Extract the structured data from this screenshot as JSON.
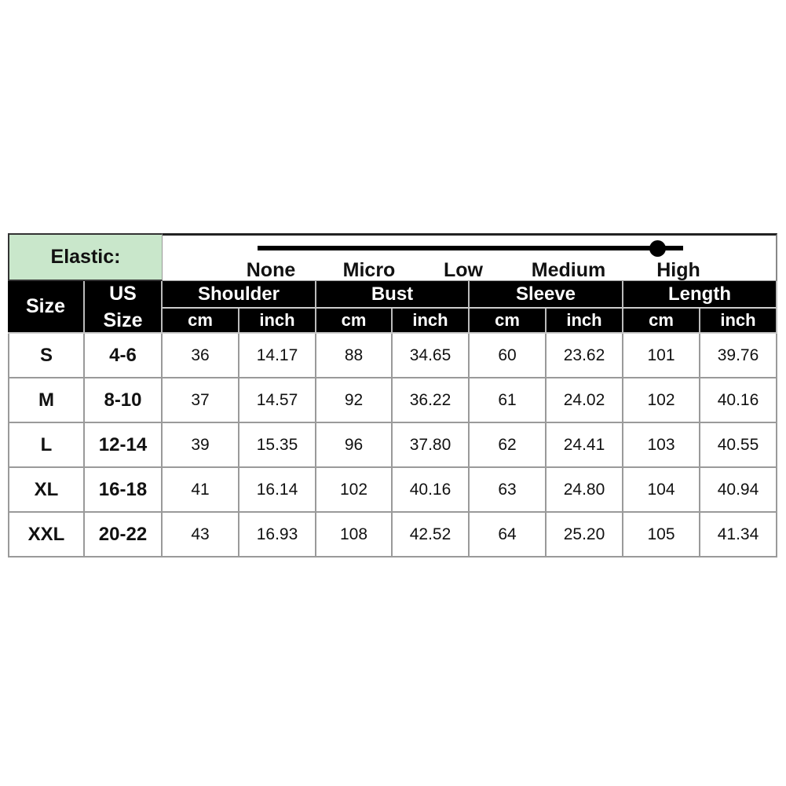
{
  "elastic": {
    "label": "Elastic:",
    "levels": [
      "None",
      "Micro",
      "Low",
      "Medium",
      "High"
    ],
    "selected": "High"
  },
  "headers": {
    "size": "Size",
    "us_size_line1": "US",
    "us_size_line2": "Size",
    "groups": [
      "Shoulder",
      "Bust",
      "Sleeve",
      "Length"
    ],
    "units": [
      "cm",
      "inch"
    ]
  },
  "rows": [
    [
      "S",
      "4-6",
      "36",
      "14.17",
      "88",
      "34.65",
      "60",
      "23.62",
      "101",
      "39.76"
    ],
    [
      "M",
      "8-10",
      "37",
      "14.57",
      "92",
      "36.22",
      "61",
      "24.02",
      "102",
      "40.16"
    ],
    [
      "L",
      "12-14",
      "39",
      "15.35",
      "96",
      "37.80",
      "62",
      "24.41",
      "103",
      "40.55"
    ],
    [
      "XL",
      "16-18",
      "41",
      "16.14",
      "102",
      "40.16",
      "63",
      "24.80",
      "104",
      "40.94"
    ],
    [
      "XXL",
      "20-22",
      "43",
      "16.93",
      "108",
      "42.52",
      "64",
      "25.20",
      "105",
      "41.34"
    ]
  ]
}
